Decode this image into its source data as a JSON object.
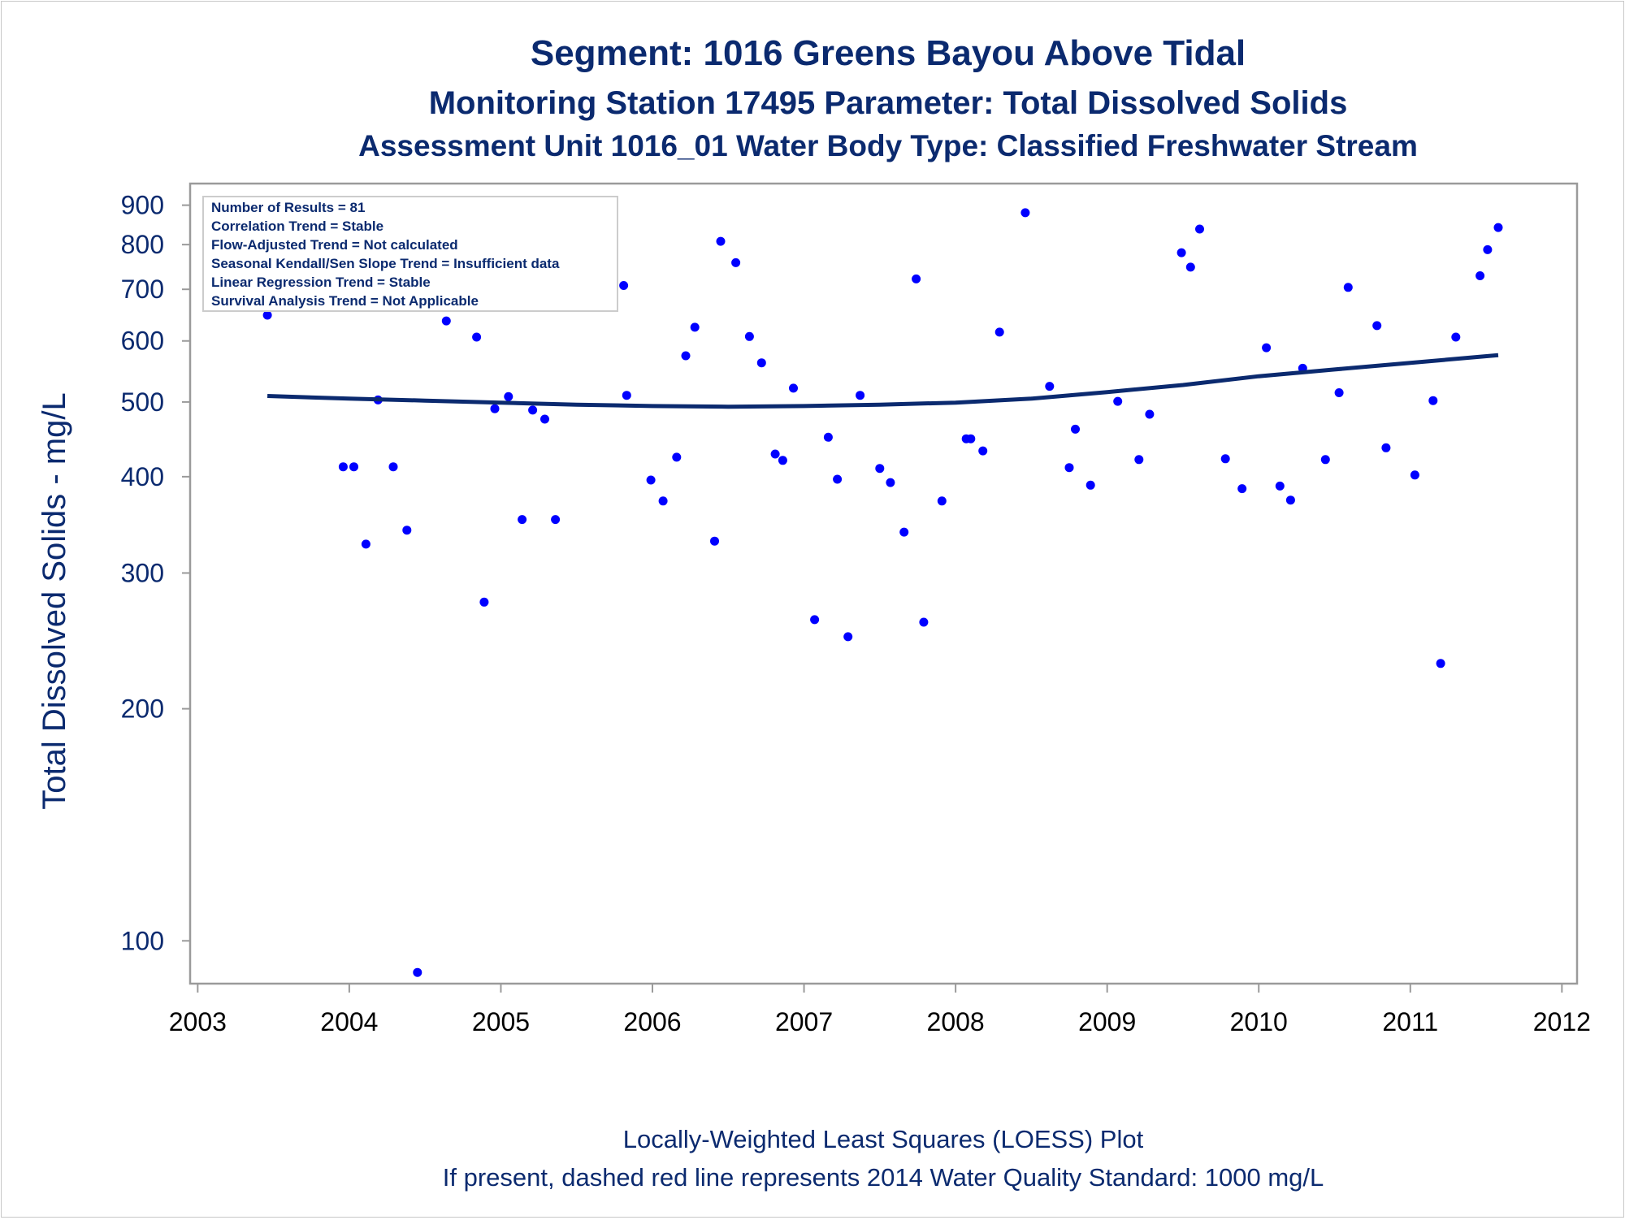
{
  "chart_data": {
    "type": "scatter",
    "title": "Segment: 1016  Greens Bayou Above Tidal",
    "subtitle": "Monitoring Station 17495 Parameter: Total Dissolved Solids",
    "subtitle2": "Assessment Unit 1016_01   Water Body Type: Classified Freshwater Stream",
    "ylabel": "Total Dissolved Solids - mg/L",
    "xlabel": "",
    "footnote1": "Locally-Weighted Least Squares (LOESS) Plot",
    "footnote2": "If present, dashed red line represents 2014 Water Quality Standard: 1000  mg/L",
    "y_scale": "log",
    "ylim": [
      88,
      960
    ],
    "xlim": [
      2002.95,
      2012.1
    ],
    "x_ticks": [
      "2003",
      "2004",
      "2005",
      "2006",
      "2007",
      "2008",
      "2009",
      "2010",
      "2011",
      "2012"
    ],
    "y_ticks": [
      100,
      200,
      300,
      400,
      500,
      600,
      700,
      800,
      900
    ],
    "grid": false,
    "stats_box": [
      "Number of Results = 81",
      "Correlation Trend = Stable",
      "Flow-Adjusted Trend = Not calculated",
      "Seasonal Kendall/Sen Slope Trend = Insufficient data",
      "Linear Regression Trend = Stable",
      "Survival Analysis Trend = Not Applicable"
    ],
    "series": [
      {
        "type": "scatter",
        "color": "#0000ff",
        "x": [
          2003.46,
          2003.51,
          2003.61,
          2003.96,
          2004.03,
          2004.11,
          2004.19,
          2004.29,
          2004.38,
          2004.45,
          2004.56,
          2004.64,
          2004.69,
          2004.84,
          2004.89,
          2004.96,
          2005.05,
          2005.14,
          2005.21,
          2005.29,
          2005.36,
          2005.73,
          2005.81,
          2005.83,
          2005.99,
          2006.07,
          2006.16,
          2006.22,
          2006.28,
          2006.41,
          2006.45,
          2006.55,
          2006.64,
          2006.72,
          2006.81,
          2006.86,
          2006.93,
          2007.07,
          2007.16,
          2007.22,
          2007.29,
          2007.37,
          2007.5,
          2007.57,
          2007.66,
          2007.74,
          2007.79,
          2007.91,
          2008.07,
          2008.1,
          2008.18,
          2008.29,
          2008.46,
          2008.62,
          2008.75,
          2008.79,
          2008.89,
          2009.07,
          2009.21,
          2009.28,
          2009.49,
          2009.55,
          2009.61,
          2009.78,
          2009.89,
          2010.05,
          2010.14,
          2010.21,
          2010.29,
          2010.44,
          2010.53,
          2010.59,
          2010.78,
          2010.84,
          2011.03,
          2011.15,
          2011.2,
          2011.3,
          2011.46,
          2011.51,
          2011.58
        ],
        "y": [
          648,
          690,
          700,
          412,
          412,
          327,
          503,
          412,
          341,
          91,
          760,
          637,
          715,
          607,
          275,
          490,
          508,
          352,
          488,
          475,
          352,
          780,
          708,
          510,
          396,
          372,
          424,
          574,
          625,
          330,
          808,
          758,
          608,
          562,
          428,
          420,
          521,
          261,
          450,
          397,
          248,
          510,
          410,
          393,
          339,
          722,
          259,
          372,
          448,
          448,
          432,
          616,
          880,
          524,
          411,
          461,
          390,
          501,
          421,
          482,
          781,
          748,
          838,
          422,
          386,
          588,
          389,
          373,
          553,
          421,
          514,
          704,
          628,
          436,
          402,
          502,
          229,
          607,
          729,
          788,
          842
        ]
      },
      {
        "type": "line",
        "name": "LOESS",
        "color": "#0b2a6f",
        "x": [
          2003.46,
          2004.0,
          2004.5,
          2005.0,
          2005.5,
          2006.0,
          2006.5,
          2007.0,
          2007.5,
          2008.0,
          2008.5,
          2009.0,
          2009.5,
          2010.0,
          2010.5,
          2011.0,
          2011.58
        ],
        "y": [
          509,
          505,
          502,
          499,
          496,
          494,
          493,
          494,
          496,
          499,
          505,
          515,
          526,
          540,
          551,
          562,
          575
        ]
      }
    ]
  }
}
